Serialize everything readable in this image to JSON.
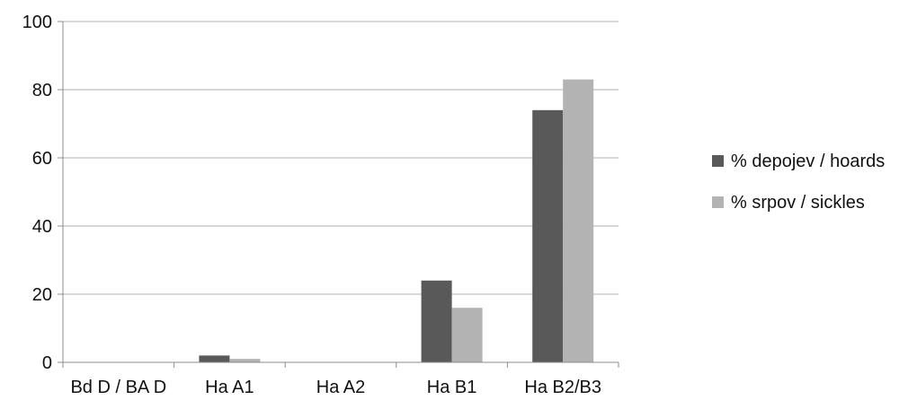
{
  "chart_data": {
    "type": "bar",
    "categories": [
      "Bd D / BA D",
      "Ha A1",
      "Ha A2",
      "Ha B1",
      "Ha B2/B3"
    ],
    "series": [
      {
        "name": "% depojev / hoards",
        "values": [
          0,
          2,
          0,
          24,
          74
        ],
        "color": "#595959"
      },
      {
        "name": "% srpov / sickles",
        "values": [
          0,
          1,
          0,
          16,
          83
        ],
        "color": "#b3b3b3"
      }
    ],
    "yticks": [
      0,
      20,
      40,
      60,
      80,
      100
    ],
    "ylim": [
      0,
      100
    ],
    "grid": true,
    "legend": "right",
    "title": "",
    "xlabel": "",
    "ylabel": ""
  }
}
